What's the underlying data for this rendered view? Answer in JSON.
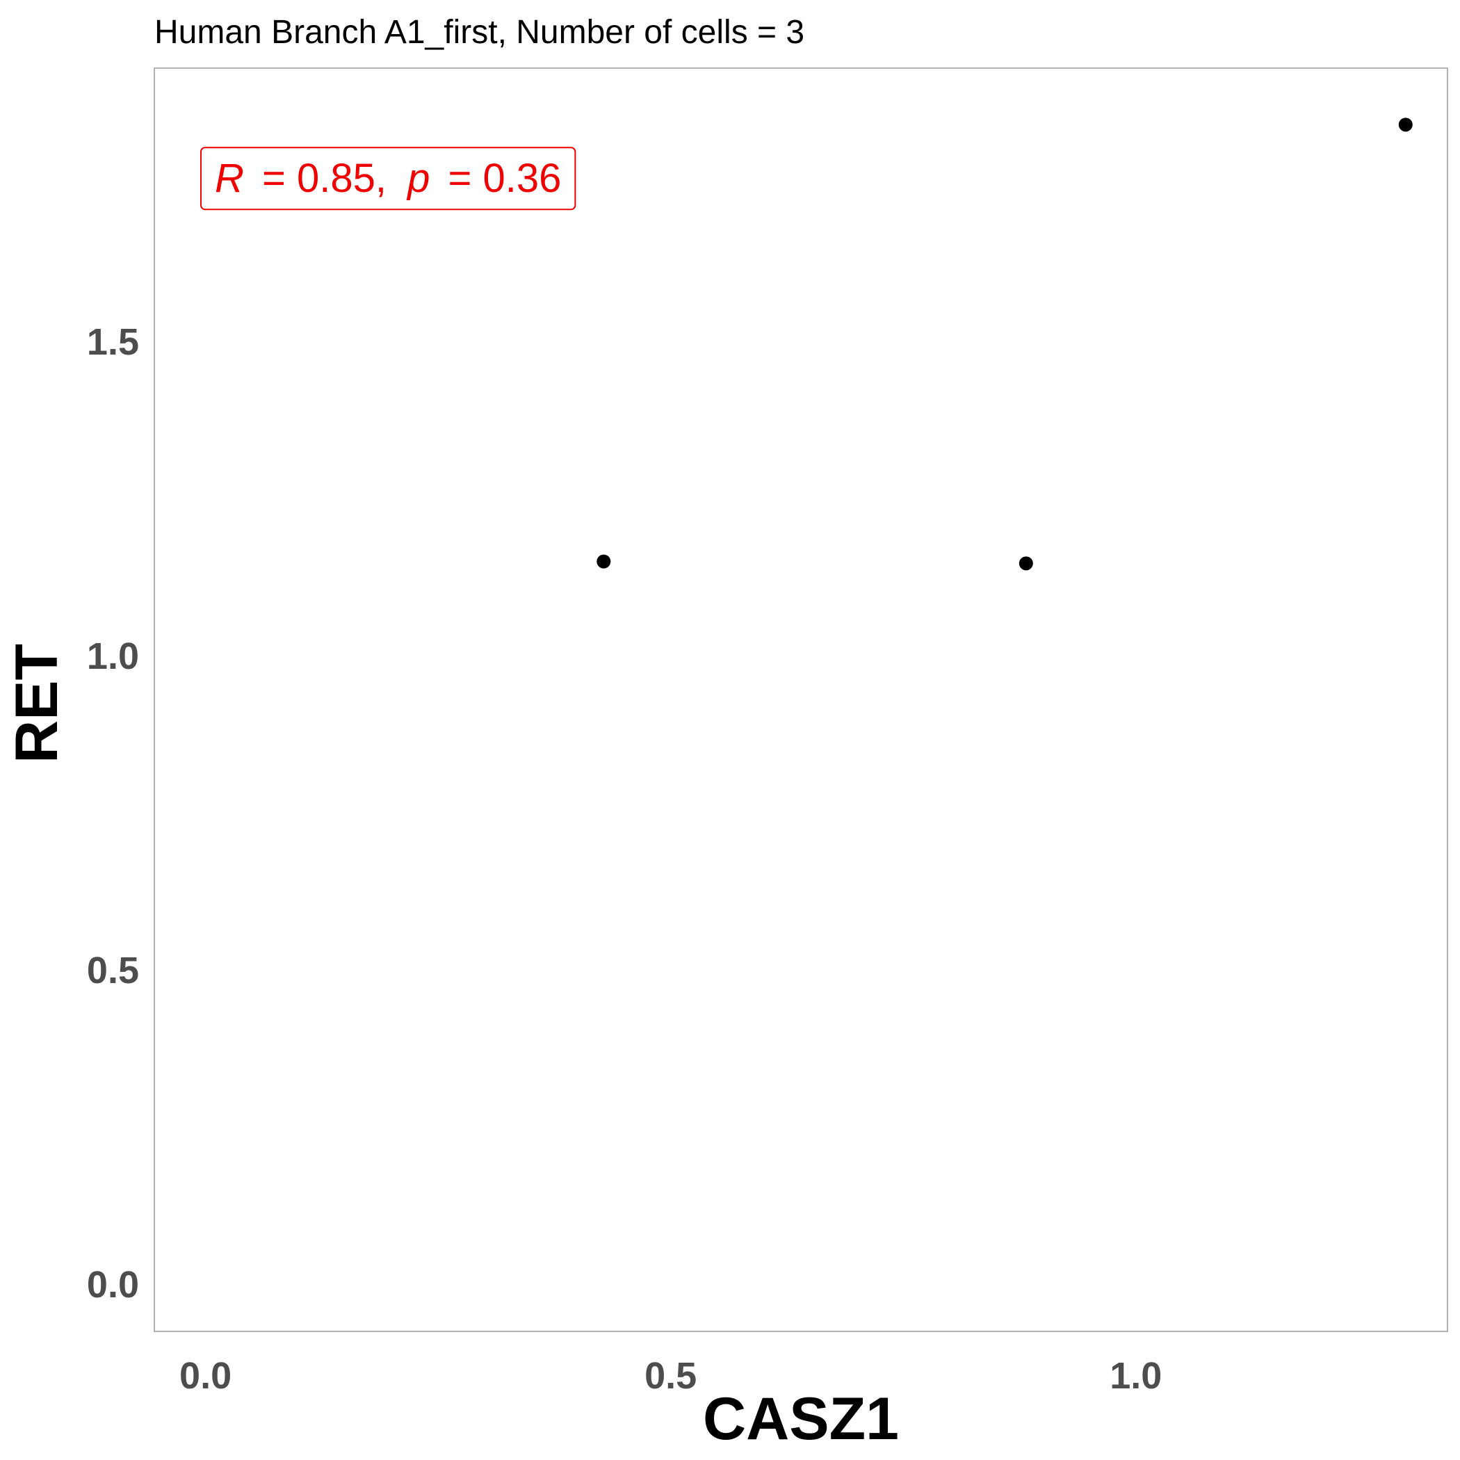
{
  "chart_data": {
    "type": "scatter",
    "title": "Human Branch A1_first, Number of cells = 3",
    "xlabel": "CASZ1",
    "ylabel": "RET",
    "xlim": [
      -0.055,
      1.335
    ],
    "ylim": [
      -0.075,
      1.935
    ],
    "xticks": [
      {
        "value": 0.0,
        "label": "0.0"
      },
      {
        "value": 0.5,
        "label": "0.5"
      },
      {
        "value": 1.0,
        "label": "1.0"
      }
    ],
    "yticks": [
      {
        "value": 0.0,
        "label": "0.0"
      },
      {
        "value": 0.5,
        "label": "0.5"
      },
      {
        "value": 1.0,
        "label": "1.0"
      },
      {
        "value": 1.5,
        "label": "1.5"
      }
    ],
    "points": [
      {
        "x": 0.428,
        "y": 1.15
      },
      {
        "x": 0.882,
        "y": 1.147
      },
      {
        "x": 1.29,
        "y": 1.845
      }
    ],
    "grid": false,
    "point_color": "#000000",
    "annotation": {
      "r_symbol": "R",
      "r_value": "= 0.85,",
      "p_symbol": "p",
      "p_value": "= 0.36",
      "color": "#ee0000",
      "x": 0.01,
      "y": 1.76
    }
  }
}
